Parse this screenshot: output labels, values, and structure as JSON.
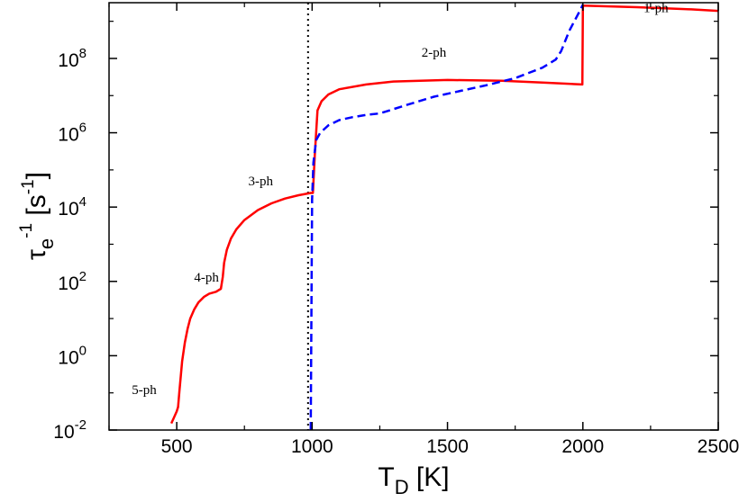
{
  "chart_data": {
    "type": "line",
    "title": "",
    "xlabel": {
      "main": "T",
      "sub": "D",
      "unit": " [K]"
    },
    "ylabel": {
      "main": "τ",
      "sub": "e",
      "sup": "-1",
      "unit_open": " [s",
      "unit_sup": "-1",
      "unit_close": "]"
    },
    "xlim": [
      250,
      2500
    ],
    "ylim_log10": [
      -2,
      9.5
    ],
    "y_scale": "log",
    "grid": false,
    "legend": "none",
    "x_ticks": [
      {
        "value": 500,
        "label": "500"
      },
      {
        "value": 1000,
        "label": "1000"
      },
      {
        "value": 1500,
        "label": "1500"
      },
      {
        "value": 2000,
        "label": "2000"
      },
      {
        "value": 2500,
        "label": "2500"
      }
    ],
    "y_ticks": [
      {
        "exp": -2,
        "base": "10",
        "sup": "-2"
      },
      {
        "exp": 0,
        "base": "10",
        "sup": "0"
      },
      {
        "exp": 2,
        "base": "10",
        "sup": "2"
      },
      {
        "exp": 4,
        "base": "10",
        "sup": "4"
      },
      {
        "exp": 6,
        "base": "10",
        "sup": "6"
      },
      {
        "exp": 8,
        "base": "10",
        "sup": "8"
      }
    ],
    "vline": {
      "x": 985,
      "style": "dotted",
      "color": "#000000"
    },
    "series": [
      {
        "style": "solid",
        "color": "#ff0000",
        "points": [
          [
            480,
            -1.82
          ],
          [
            490,
            -1.66
          ],
          [
            500,
            -1.5
          ],
          [
            505,
            -1.38
          ],
          [
            510,
            -0.95
          ],
          [
            515,
            -0.55
          ],
          [
            520,
            -0.15
          ],
          [
            530,
            0.35
          ],
          [
            540,
            0.72
          ],
          [
            550,
            1.0
          ],
          [
            565,
            1.25
          ],
          [
            580,
            1.43
          ],
          [
            600,
            1.58
          ],
          [
            620,
            1.67
          ],
          [
            645,
            1.72
          ],
          [
            663,
            1.8
          ],
          [
            670,
            2.12
          ],
          [
            675,
            2.5
          ],
          [
            685,
            2.85
          ],
          [
            700,
            3.15
          ],
          [
            720,
            3.4
          ],
          [
            750,
            3.65
          ],
          [
            800,
            3.92
          ],
          [
            850,
            4.1
          ],
          [
            900,
            4.23
          ],
          [
            950,
            4.32
          ],
          [
            995,
            4.38
          ],
          [
            1003,
            4.38
          ],
          [
            1010,
            5.4
          ],
          [
            1020,
            6.6
          ],
          [
            1035,
            6.85
          ],
          [
            1060,
            7.03
          ],
          [
            1100,
            7.17
          ],
          [
            1200,
            7.3
          ],
          [
            1300,
            7.38
          ],
          [
            1500,
            7.42
          ],
          [
            1700,
            7.4
          ],
          [
            1850,
            7.35
          ],
          [
            1998,
            7.3
          ],
          [
            2000,
            9.42
          ],
          [
            2200,
            9.38
          ],
          [
            2400,
            9.32
          ],
          [
            2500,
            9.28
          ]
        ]
      },
      {
        "style": "dashed",
        "color": "#0000ff",
        "points": [
          [
            995,
            -2
          ],
          [
            1000,
            4.2
          ],
          [
            1005,
            5.2
          ],
          [
            1015,
            5.8
          ],
          [
            1030,
            6.0
          ],
          [
            1060,
            6.2
          ],
          [
            1100,
            6.34
          ],
          [
            1150,
            6.42
          ],
          [
            1200,
            6.48
          ],
          [
            1250,
            6.52
          ],
          [
            1350,
            6.75
          ],
          [
            1450,
            6.97
          ],
          [
            1550,
            7.13
          ],
          [
            1650,
            7.29
          ],
          [
            1750,
            7.47
          ],
          [
            1850,
            7.75
          ],
          [
            1900,
            7.97
          ],
          [
            1920,
            8.2
          ],
          [
            1950,
            8.75
          ],
          [
            1990,
            9.3
          ],
          [
            2000,
            9.45
          ]
        ]
      }
    ],
    "annotations": [
      {
        "text": "1-ph",
        "x": 2270,
        "y": 9.24
      },
      {
        "text": "2-ph",
        "x": 1450,
        "y": 8.05
      },
      {
        "text": "3-ph",
        "x": 810,
        "y": 4.58
      },
      {
        "text": "4-ph",
        "x": 610,
        "y": 2.0
      },
      {
        "text": "5-ph",
        "x": 380,
        "y": -1.03
      }
    ]
  }
}
